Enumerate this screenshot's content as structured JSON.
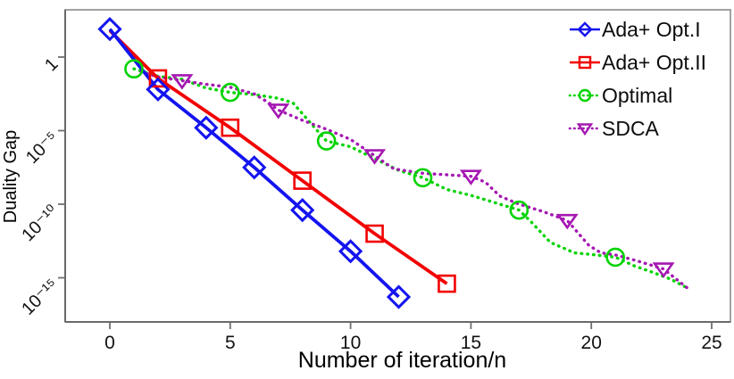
{
  "figure": {
    "xlabel": "Number of iteration/n",
    "ylabel": "Duality Gap"
  },
  "axes": {
    "x_tick_labels": [
      "0",
      "5",
      "10",
      "15",
      "20",
      "25"
    ],
    "x_tick_values": [
      0,
      5,
      10,
      15,
      20,
      25
    ],
    "y_tick_labels": [
      "1",
      "10⁻⁵",
      "10⁻¹⁰",
      "10⁻¹⁵"
    ],
    "y_tick_exponents": [
      0,
      -5,
      -10,
      -15
    ],
    "border_color": "#8a8a8a",
    "axis_color": "#5f5f5f",
    "tick_color": "#6f6f6f"
  },
  "legend": {
    "items": [
      {
        "label": "Ada+ Opt.I",
        "color": "#1414f0",
        "marker": "diamond",
        "line": "solid"
      },
      {
        "label": "Ada+ Opt.II",
        "color": "#f20000",
        "marker": "square",
        "line": "solid"
      },
      {
        "label": "Optimal",
        "color": "#00d300",
        "marker": "circle",
        "line": "dotted"
      },
      {
        "label": "SDCA",
        "color": "#a517b2",
        "marker": "triangle-down",
        "line": "dotted"
      }
    ]
  },
  "chart_data": {
    "type": "line",
    "title": "",
    "xlabel": "Number of iteration/n",
    "ylabel": "Duality Gap",
    "x_axis_range": [
      -1.9,
      25.8
    ],
    "y_scale": "log10",
    "y_axis_range_log10": [
      -18,
      3.2
    ],
    "grid": false,
    "legend_position": "top-right",
    "series": [
      {
        "name": "Ada+ Opt.I",
        "color": "#1414f0",
        "marker": "diamond",
        "linestyle": "solid",
        "points_x": [
          0,
          2,
          4,
          6,
          8,
          10,
          12
        ],
        "points_log10y": [
          1.9,
          -2.2,
          -4.8,
          -7.5,
          -10.4,
          -13.2,
          -16.3
        ],
        "line_x": [
          0,
          2,
          4,
          6,
          8,
          10,
          12
        ],
        "line_log10y": [
          1.9,
          -2.2,
          -4.8,
          -7.5,
          -10.4,
          -13.2,
          -16.3
        ]
      },
      {
        "name": "Ada+ Opt.II",
        "color": "#f20000",
        "marker": "square",
        "linestyle": "solid",
        "points_x": [
          2,
          5,
          8,
          11,
          14
        ],
        "points_log10y": [
          -1.45,
          -4.8,
          -8.4,
          -12.0,
          -15.4
        ],
        "line_x": [
          0,
          2,
          5,
          8,
          11,
          14
        ],
        "line_log10y": [
          1.8,
          -1.45,
          -4.8,
          -8.4,
          -12.0,
          -15.4
        ]
      },
      {
        "name": "Optimal",
        "color": "#00d300",
        "marker": "circle",
        "linestyle": "dotted",
        "points_x": [
          1,
          5,
          9,
          13,
          17,
          21
        ],
        "points_log10y": [
          -0.8,
          -2.4,
          -5.7,
          -8.2,
          -10.4,
          -13.6
        ],
        "line_x": [
          1,
          2,
          3,
          4,
          5,
          6,
          7,
          7.6,
          8.4,
          9,
          10,
          11,
          12,
          13,
          14,
          15,
          16,
          17,
          17.5,
          18.3,
          19.3,
          20.2,
          21,
          21.8,
          22.5,
          23.3,
          24
        ],
        "line_log10y": [
          -0.8,
          -1.3,
          -1.5,
          -2.1,
          -2.4,
          -2.55,
          -2.8,
          -3.1,
          -4.6,
          -5.7,
          -6.1,
          -6.9,
          -7.7,
          -8.2,
          -9.0,
          -9.4,
          -9.9,
          -10.4,
          -11.2,
          -12.6,
          -13.3,
          -13.45,
          -13.6,
          -14.2,
          -14.6,
          -15.1,
          -15.7
        ]
      },
      {
        "name": "SDCA",
        "color": "#a517b2",
        "marker": "triangle-down",
        "linestyle": "dotted",
        "points_x": [
          3,
          7,
          11,
          15,
          19,
          23
        ],
        "points_log10y": [
          -1.6,
          -3.6,
          -6.7,
          -8.1,
          -11.1,
          -14.4
        ],
        "line_x": [
          1.3,
          2,
          3,
          4,
          5,
          6,
          6.6,
          7,
          8,
          9,
          10,
          11,
          11.8,
          13,
          14,
          15,
          15.6,
          16.2,
          17,
          18,
          19,
          19.9,
          20.4,
          21,
          21.8,
          23,
          24
        ],
        "line_log10y": [
          -1.0,
          -1.35,
          -1.6,
          -1.85,
          -2.05,
          -2.5,
          -3.1,
          -3.6,
          -4.3,
          -4.9,
          -5.6,
          -6.7,
          -7.6,
          -7.9,
          -8.0,
          -8.1,
          -8.5,
          -9.45,
          -10.0,
          -10.5,
          -11.1,
          -12.8,
          -13.3,
          -13.45,
          -13.8,
          -14.4,
          -15.7
        ]
      }
    ]
  }
}
